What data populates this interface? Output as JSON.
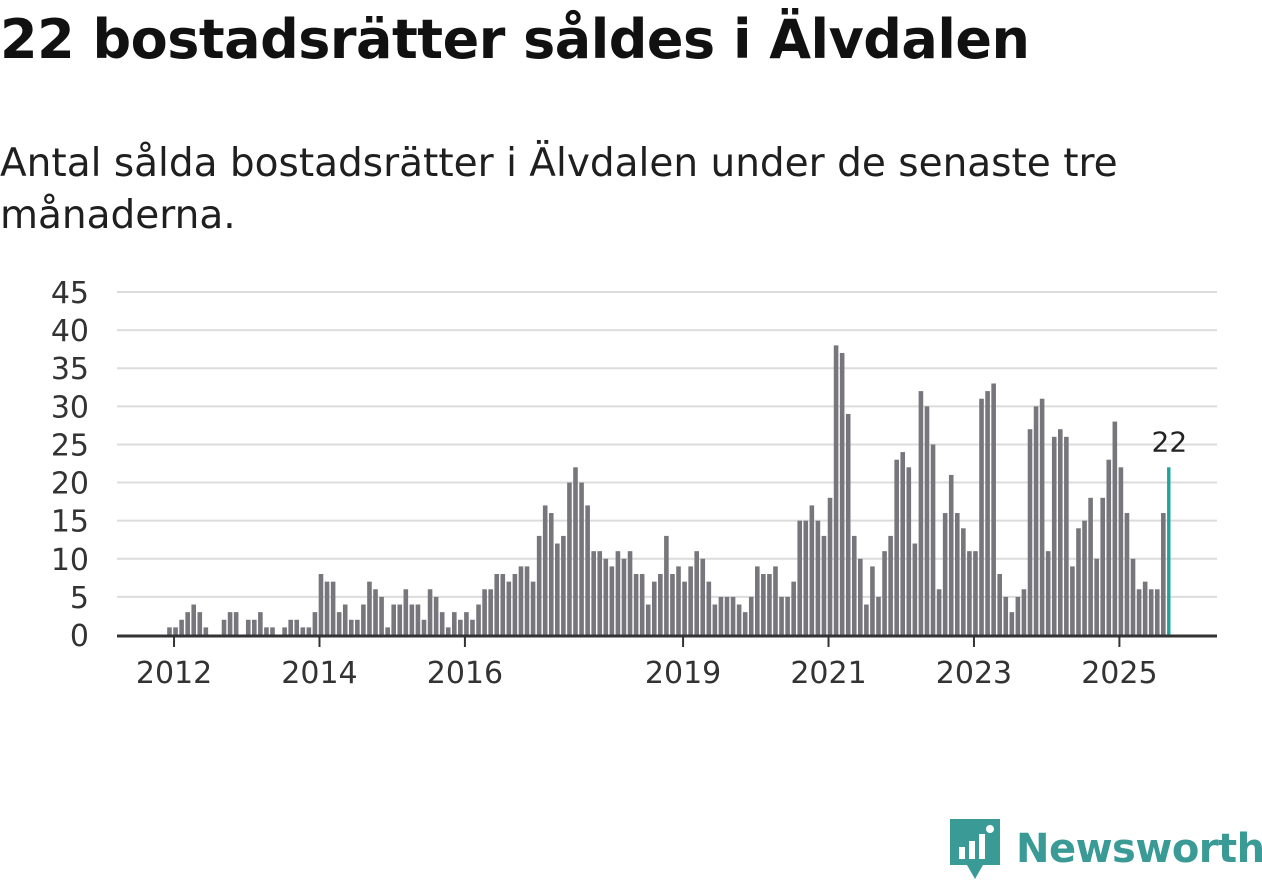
{
  "header": {
    "title": "22 bostadsrätter såldes i Älvdalen",
    "subtitle": "Antal sålda bostadsrätter i Älvdalen under de senaste tre månaderna."
  },
  "brand": {
    "name": "Newsworthy",
    "logo_icon": "newsworthy-chart-icon"
  },
  "colors": {
    "bar": "#77767c",
    "highlight": "#1fa39c",
    "grid": "#dcdcdc",
    "axis": "#333333",
    "brand": "#3a9a96"
  },
  "chart_data": {
    "type": "bar",
    "title": "22 bostadsrätter såldes i Älvdalen",
    "subtitle": "Antal sålda bostadsrätter i Älvdalen under de senaste tre månaderna.",
    "xlabel": "",
    "ylabel": "",
    "ylim": [
      0,
      45
    ],
    "yticks": [
      "0",
      "5",
      "10",
      "15",
      "20",
      "25",
      "30",
      "35",
      "40",
      "45"
    ],
    "grid": true,
    "x_start": "2011-04",
    "period": "month",
    "xticks": [
      {
        "label": "2012",
        "index": 9
      },
      {
        "label": "2014",
        "index": 33
      },
      {
        "label": "2016",
        "index": 57
      },
      {
        "label": "2019",
        "index": 93
      },
      {
        "label": "2021",
        "index": 117
      },
      {
        "label": "2023",
        "index": 141
      },
      {
        "label": "2025",
        "index": 165
      }
    ],
    "values": [
      0,
      0,
      0,
      0,
      0,
      0,
      0,
      0,
      1,
      1,
      2,
      3,
      4,
      3,
      1,
      0,
      0,
      2,
      3,
      3,
      0,
      2,
      2,
      3,
      1,
      1,
      0,
      1,
      2,
      2,
      1,
      1,
      3,
      8,
      7,
      7,
      3,
      4,
      2,
      2,
      4,
      7,
      6,
      5,
      1,
      4,
      4,
      6,
      4,
      4,
      2,
      6,
      5,
      3,
      1,
      3,
      2,
      3,
      2,
      4,
      6,
      6,
      8,
      8,
      7,
      8,
      9,
      9,
      7,
      13,
      17,
      16,
      12,
      13,
      20,
      22,
      20,
      17,
      11,
      11,
      10,
      9,
      11,
      10,
      11,
      8,
      8,
      4,
      7,
      8,
      13,
      8,
      9,
      7,
      9,
      11,
      10,
      7,
      4,
      5,
      5,
      5,
      4,
      3,
      5,
      9,
      8,
      8,
      9,
      5,
      5,
      7,
      15,
      15,
      17,
      15,
      13,
      18,
      38,
      37,
      29,
      13,
      10,
      4,
      9,
      5,
      11,
      13,
      23,
      24,
      22,
      12,
      32,
      30,
      25,
      6,
      16,
      21,
      16,
      14,
      11,
      11,
      31,
      32,
      33,
      8,
      5,
      3,
      5,
      6,
      27,
      30,
      31,
      11,
      26,
      27,
      26,
      9,
      14,
      15,
      18,
      10,
      18,
      23,
      28,
      22,
      16,
      10,
      6,
      7,
      6,
      6,
      16,
      22
    ],
    "highlight_index": 173,
    "highlight_label": "22"
  }
}
